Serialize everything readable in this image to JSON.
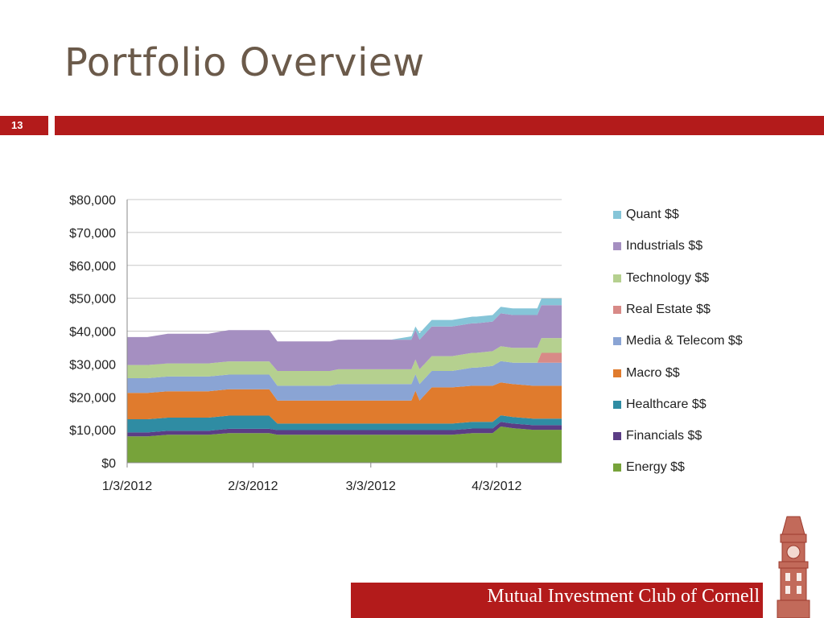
{
  "slide": {
    "title": "Portfolio Overview",
    "page_number": "13",
    "footer": "Mutual Investment Club of Cornell"
  },
  "colors": {
    "accent": "#b31b1b",
    "title": "#6b5a4a"
  },
  "chart_data": {
    "type": "area",
    "stacked": true,
    "xlabel": "",
    "ylabel": "",
    "ylim": [
      0,
      80000
    ],
    "y_ticks": [
      "$0",
      "$10,000",
      "$20,000",
      "$30,000",
      "$40,000",
      "$50,000",
      "$60,000",
      "$70,000",
      "$80,000"
    ],
    "x_ticks": [
      "1/3/2012",
      "2/3/2012",
      "3/3/2012",
      "4/3/2012"
    ],
    "x_tick_days": [
      0,
      31,
      60,
      91
    ],
    "x_range_days": [
      0,
      107
    ],
    "grid": "horizontal",
    "legend_position": "right",
    "x_days": [
      0,
      5,
      10,
      15,
      20,
      25,
      30,
      35,
      37,
      40,
      45,
      47,
      50,
      52,
      55,
      57,
      60,
      65,
      70,
      71,
      72,
      75,
      80,
      85,
      86,
      90,
      92,
      95,
      100,
      101,
      102,
      105,
      107
    ],
    "series": [
      {
        "name": "Energy $$",
        "color": "#77a33a",
        "values": [
          8000,
          8000,
          8500,
          8500,
          8500,
          9000,
          9000,
          9000,
          8500,
          8500,
          8500,
          8500,
          8500,
          8500,
          8500,
          8500,
          8500,
          8500,
          8500,
          8500,
          8500,
          8500,
          8500,
          9000,
          9000,
          9000,
          11000,
          10500,
          10000,
          10000,
          10000,
          10000,
          10000
        ]
      },
      {
        "name": "Financials $$",
        "color": "#5b3d85",
        "values": [
          1200,
          1200,
          1200,
          1200,
          1200,
          1300,
          1300,
          1300,
          1400,
          1400,
          1400,
          1400,
          1400,
          1400,
          1400,
          1400,
          1400,
          1400,
          1400,
          1400,
          1400,
          1400,
          1400,
          1400,
          1400,
          1400,
          1400,
          1400,
          1400,
          1400,
          1400,
          1400,
          1400
        ]
      },
      {
        "name": "Healthcare $$",
        "color": "#2f8ca3",
        "values": [
          4000,
          4000,
          4000,
          4000,
          4000,
          4000,
          4000,
          4000,
          2000,
          2000,
          2000,
          2000,
          2000,
          2000,
          2000,
          2000,
          2000,
          2000,
          2000,
          2000,
          2000,
          2000,
          2000,
          2000,
          2000,
          2000,
          2000,
          2000,
          2000,
          2000,
          2000,
          2000,
          2000
        ]
      },
      {
        "name": "Macro $$",
        "color": "#e07b2d",
        "values": [
          8000,
          8000,
          8000,
          8000,
          8000,
          8000,
          8000,
          8000,
          7000,
          7000,
          7000,
          7000,
          7000,
          7000,
          7000,
          7000,
          7000,
          7000,
          7000,
          10000,
          7000,
          11000,
          11000,
          11000,
          11000,
          11000,
          10000,
          10000,
          10000,
          10000,
          10000,
          10000,
          10000
        ]
      },
      {
        "name": "Media & Telecom $$",
        "color": "#8aa4d4",
        "values": [
          4500,
          4500,
          4500,
          4500,
          4500,
          4500,
          4500,
          4500,
          4500,
          4500,
          4500,
          4500,
          4500,
          5000,
          5000,
          5000,
          5000,
          5000,
          5000,
          5000,
          5000,
          5000,
          5000,
          5500,
          5500,
          6000,
          6500,
          6500,
          7000,
          7000,
          7000,
          7000,
          7000
        ]
      },
      {
        "name": "Real Estate $$",
        "color": "#d88a87",
        "values": [
          0,
          0,
          0,
          0,
          0,
          0,
          0,
          0,
          0,
          0,
          0,
          0,
          0,
          0,
          0,
          0,
          0,
          0,
          0,
          0,
          0,
          0,
          0,
          0,
          0,
          0,
          0,
          0,
          0,
          0,
          3000,
          3000,
          3000
        ]
      },
      {
        "name": "Technology $$",
        "color": "#b5d08f",
        "values": [
          4000,
          4000,
          4000,
          4000,
          4000,
          4000,
          4000,
          4000,
          4500,
          4500,
          4500,
          4500,
          4500,
          4500,
          4500,
          4500,
          4500,
          4500,
          4500,
          4500,
          4500,
          4500,
          4500,
          4500,
          4500,
          4500,
          4500,
          4500,
          4500,
          4500,
          4500,
          4500,
          4500
        ]
      },
      {
        "name": "Industrials $$",
        "color": "#a58fc1",
        "values": [
          8500,
          8500,
          9000,
          9000,
          9000,
          9500,
          9500,
          9500,
          9000,
          9000,
          9000,
          9000,
          9000,
          9000,
          9000,
          9000,
          9000,
          9000,
          9000,
          9000,
          9000,
          9000,
          9000,
          9000,
          9000,
          9000,
          10000,
          10000,
          10000,
          10000,
          10000,
          10000,
          10000
        ]
      },
      {
        "name": "Quant $$",
        "color": "#86c5d8",
        "values": [
          0,
          0,
          0,
          0,
          0,
          0,
          0,
          0,
          0,
          0,
          0,
          0,
          0,
          0,
          0,
          0,
          0,
          0,
          1000,
          1000,
          2000,
          2000,
          2000,
          2000,
          2000,
          2000,
          2000,
          2000,
          2000,
          2000,
          2000,
          2000,
          2000
        ]
      }
    ]
  }
}
